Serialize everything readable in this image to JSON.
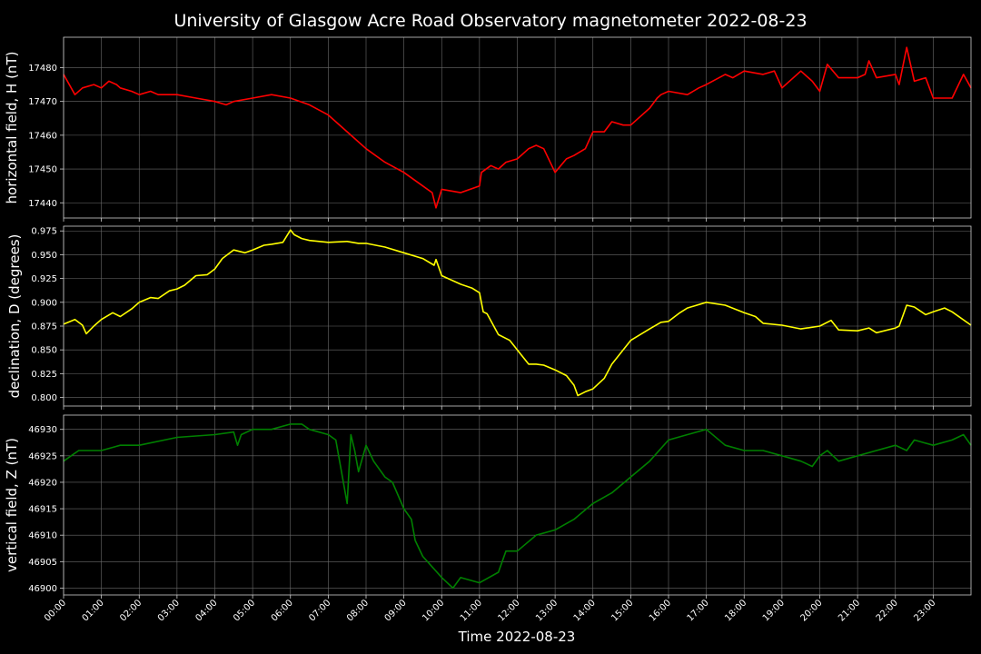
{
  "title": "University of Glasgow Acre Road Observatory magnetometer 2022-08-23",
  "colors": {
    "background": "#000000",
    "H": "#ff0000",
    "D": "#ffff00",
    "Z": "#008000"
  },
  "chart_data": {
    "type": "line",
    "title": "University of Glasgow Acre Road Observatory magnetometer 2022-08-23",
    "xlabel": "Time 2022-08-23",
    "x_range_hours": [
      0,
      24
    ],
    "x_tick_labels": [
      "00:00",
      "01:00",
      "02:00",
      "03:00",
      "04:00",
      "05:00",
      "06:00",
      "07:00",
      "08:00",
      "09:00",
      "10:00",
      "11:00",
      "12:00",
      "13:00",
      "14:00",
      "15:00",
      "16:00",
      "17:00",
      "18:00",
      "19:00",
      "20:00",
      "21:00",
      "22:00",
      "23:00"
    ],
    "grid": true,
    "panels": [
      {
        "ylabel": "horizontal field, H (nT)",
        "color": "#ff0000",
        "ylim": [
          17435.5,
          17489
        ],
        "yticks": [
          17440,
          17450,
          17460,
          17470,
          17480
        ],
        "ytick_labels": [
          "17440",
          "17450",
          "17460",
          "17470",
          "17480"
        ],
        "x": [
          0,
          0.3,
          0.5,
          0.8,
          1.0,
          1.2,
          1.4,
          1.5,
          1.8,
          2.0,
          2.3,
          2.5,
          3.0,
          3.5,
          4.0,
          4.3,
          4.5,
          5.0,
          5.5,
          6.0,
          6.5,
          7.0,
          7.5,
          8.0,
          8.5,
          9.0,
          9.5,
          9.75,
          9.85,
          10.0,
          10.5,
          11.0,
          11.05,
          11.3,
          11.5,
          11.7,
          12.0,
          12.3,
          12.5,
          12.7,
          13.0,
          13.3,
          13.5,
          13.8,
          14.0,
          14.3,
          14.5,
          14.8,
          15.0,
          15.5,
          15.7,
          15.8,
          16.0,
          16.5,
          16.8,
          17.0,
          17.5,
          17.7,
          18.0,
          18.5,
          18.8,
          19.0,
          19.5,
          19.8,
          20.0,
          20.2,
          20.5,
          21.0,
          21.2,
          21.3,
          21.5,
          22.0,
          22.1,
          22.3,
          22.5,
          22.8,
          23.0,
          23.5,
          23.8,
          24.0
        ],
        "y": [
          17478,
          17472,
          17474,
          17475,
          17474,
          17476,
          17475,
          17474,
          17473,
          17472,
          17473,
          17472,
          17472,
          17471,
          17470,
          17469,
          17470,
          17471,
          17472,
          17471,
          17469,
          17466,
          17461,
          17456,
          17452,
          17449,
          17445,
          17443,
          17438.5,
          17444,
          17443,
          17445,
          17449,
          17451,
          17450,
          17452,
          17453,
          17456,
          17457,
          17456,
          17449,
          17453,
          17454,
          17456,
          17461,
          17461,
          17464,
          17463,
          17463,
          17468,
          17471,
          17472,
          17473,
          17472,
          17474,
          17475,
          17478,
          17477,
          17479,
          17478,
          17479,
          17474,
          17479,
          17476,
          17473,
          17481,
          17477,
          17477,
          17478,
          17482,
          17477,
          17478,
          17475,
          17486,
          17476,
          17477,
          17471,
          17471,
          17478,
          17474
        ]
      },
      {
        "ylabel": "declination, D (degrees)",
        "color": "#ffff00",
        "ylim": [
          0.791,
          0.98
        ],
        "yticks": [
          0.8,
          0.825,
          0.85,
          0.875,
          0.9,
          0.925,
          0.95,
          0.975
        ],
        "ytick_labels": [
          "0.800",
          "0.825",
          "0.850",
          "0.875",
          "0.900",
          "0.925",
          "0.950",
          "0.975"
        ],
        "x": [
          0,
          0.3,
          0.5,
          0.6,
          0.8,
          1.0,
          1.3,
          1.5,
          1.8,
          2.0,
          2.3,
          2.5,
          2.8,
          3.0,
          3.2,
          3.5,
          3.8,
          4.0,
          4.2,
          4.5,
          4.8,
          5.0,
          5.3,
          5.5,
          5.8,
          6.0,
          6.1,
          6.3,
          6.5,
          7.0,
          7.5,
          7.8,
          8.0,
          8.5,
          9.0,
          9.5,
          9.8,
          9.85,
          10.0,
          10.5,
          10.8,
          11.0,
          11.1,
          11.2,
          11.5,
          11.8,
          12.0,
          12.3,
          12.5,
          12.7,
          13.0,
          13.3,
          13.5,
          13.6,
          13.8,
          14.0,
          14.3,
          14.5,
          15.0,
          15.5,
          15.8,
          16.0,
          16.3,
          16.5,
          17.0,
          17.5,
          18.0,
          18.3,
          18.5,
          19.0,
          19.5,
          20.0,
          20.3,
          20.5,
          21.0,
          21.3,
          21.5,
          22.0,
          22.1,
          22.3,
          22.5,
          22.8,
          23.0,
          23.3,
          23.5,
          24.0
        ],
        "y": [
          0.877,
          0.882,
          0.876,
          0.867,
          0.875,
          0.882,
          0.889,
          0.885,
          0.893,
          0.9,
          0.905,
          0.904,
          0.912,
          0.914,
          0.918,
          0.928,
          0.929,
          0.935,
          0.946,
          0.955,
          0.952,
          0.955,
          0.96,
          0.961,
          0.963,
          0.976,
          0.971,
          0.967,
          0.965,
          0.963,
          0.964,
          0.962,
          0.962,
          0.958,
          0.952,
          0.946,
          0.939,
          0.945,
          0.928,
          0.919,
          0.915,
          0.91,
          0.89,
          0.888,
          0.866,
          0.86,
          0.85,
          0.835,
          0.835,
          0.834,
          0.829,
          0.823,
          0.813,
          0.802,
          0.806,
          0.809,
          0.82,
          0.835,
          0.86,
          0.872,
          0.879,
          0.88,
          0.889,
          0.894,
          0.9,
          0.897,
          0.889,
          0.885,
          0.878,
          0.876,
          0.872,
          0.875,
          0.881,
          0.871,
          0.87,
          0.873,
          0.868,
          0.873,
          0.875,
          0.897,
          0.895,
          0.887,
          0.89,
          0.894,
          0.89,
          0.876
        ]
      },
      {
        "ylabel": "vertical field, Z (nT)",
        "color": "#008000",
        "ylim": [
          46898.7,
          46932.7
        ],
        "yticks": [
          46900,
          46905,
          46910,
          46915,
          46920,
          46925,
          46930
        ],
        "ytick_labels": [
          "46900",
          "46905",
          "46910",
          "46915",
          "46920",
          "46925",
          "46930"
        ],
        "x": [
          0,
          0.2,
          0.4,
          0.5,
          1.0,
          1.5,
          2.0,
          3.0,
          4.0,
          4.5,
          4.6,
          4.7,
          5.0,
          5.5,
          6.0,
          6.3,
          6.5,
          7.0,
          7.2,
          7.5,
          7.6,
          7.7,
          7.8,
          8.0,
          8.2,
          8.5,
          8.7,
          9.0,
          9.2,
          9.3,
          9.5,
          10.0,
          10.3,
          10.5,
          11.0,
          11.5,
          11.7,
          12.0,
          12.5,
          13.0,
          13.5,
          14.0,
          14.5,
          15.0,
          15.5,
          16.0,
          16.5,
          17.0,
          17.5,
          18.0,
          18.5,
          19.0,
          19.5,
          19.8,
          20.0,
          20.2,
          20.5,
          21.0,
          21.5,
          22.0,
          22.3,
          22.5,
          23.0,
          23.5,
          23.8,
          24.0
        ],
        "y": [
          46924,
          46925,
          46926,
          46926,
          46926,
          46927,
          46927,
          46928.5,
          46929,
          46929.5,
          46927,
          46929,
          46930,
          46930,
          46931,
          46931,
          46930,
          46929,
          46928,
          46916,
          46929,
          46926,
          46922,
          46927,
          46924,
          46921,
          46920,
          46915,
          46913,
          46909,
          46906,
          46902,
          46900,
          46902,
          46901,
          46903,
          46907,
          46907,
          46910,
          46911,
          46913,
          46916,
          46918,
          46921,
          46924,
          46928,
          46929,
          46930,
          46927,
          46926,
          46926,
          46925,
          46924,
          46923,
          46925,
          46926,
          46924,
          46925,
          46926,
          46927,
          46926,
          46928,
          46927,
          46928,
          46929,
          46927
        ]
      }
    ]
  }
}
